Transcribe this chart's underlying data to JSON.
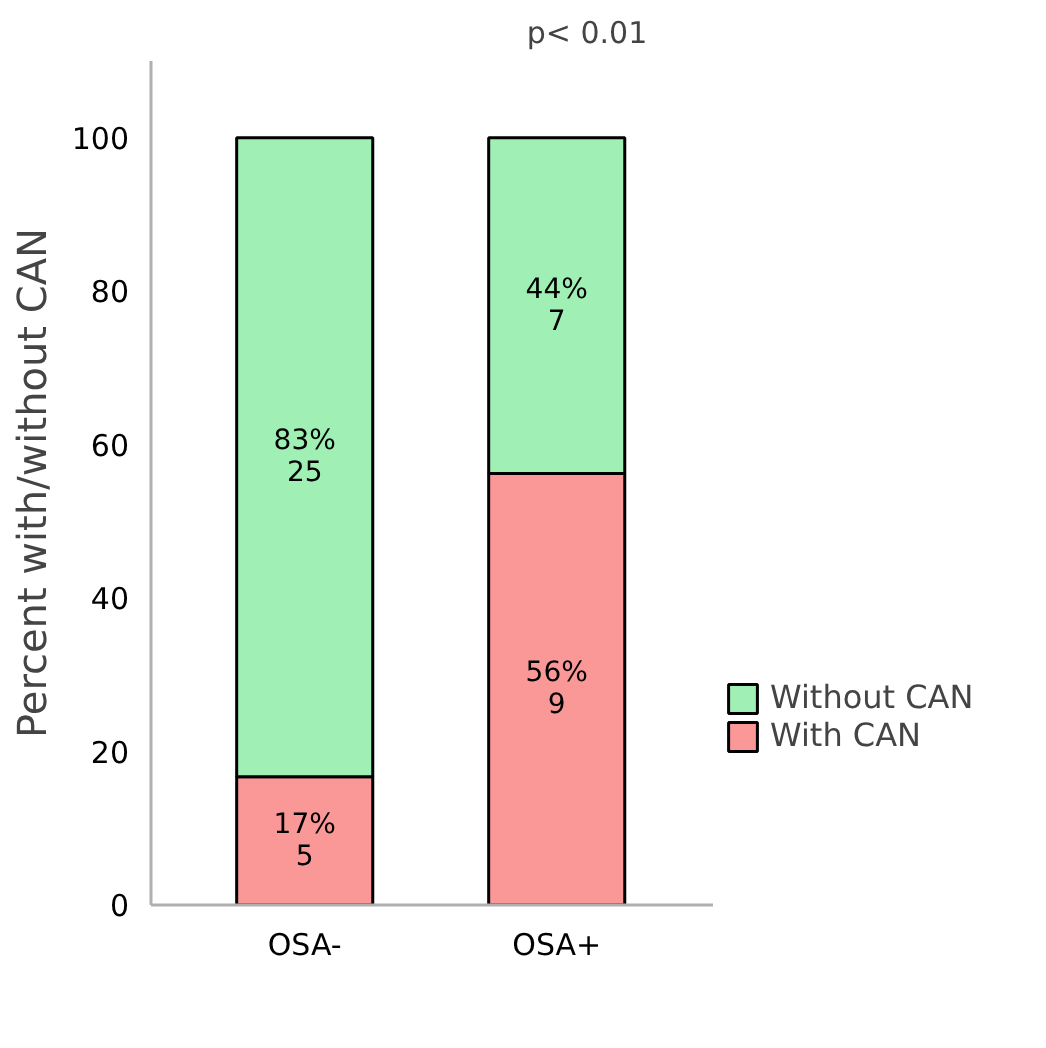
{
  "chart_data": {
    "type": "bar",
    "stacked": true,
    "categories": [
      "OSA-",
      "OSA+"
    ],
    "ylabel": "Percent with/without CAN",
    "annotations": [
      "p< 0.01"
    ],
    "series": [
      {
        "name": "With CAN",
        "color": "#fa9898",
        "values": [
          16.7,
          56.25
        ],
        "value_labels": [
          "17%\n5",
          "56%\n9"
        ]
      },
      {
        "name": "Without CAN",
        "color": "#a0efb5",
        "values": [
          83.3,
          43.75
        ],
        "value_labels": [
          "83%\n25",
          "44%\n7"
        ]
      }
    ],
    "ylim": [
      0,
      110
    ],
    "yticks": [
      0,
      20,
      40,
      60,
      80,
      100
    ],
    "grid": false,
    "legend": "right"
  }
}
